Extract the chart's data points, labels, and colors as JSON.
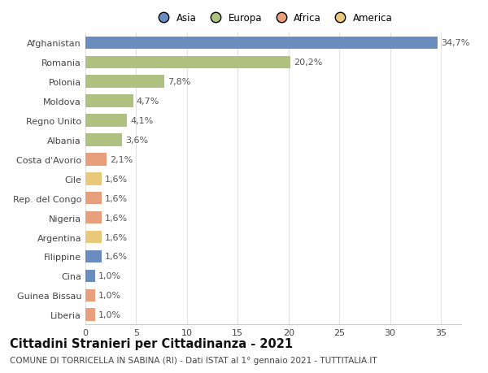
{
  "categories": [
    "Afghanistan",
    "Romania",
    "Polonia",
    "Moldova",
    "Regno Unito",
    "Albania",
    "Costa d'Avorio",
    "Cile",
    "Rep. del Congo",
    "Nigeria",
    "Argentina",
    "Filippine",
    "Cina",
    "Guinea Bissau",
    "Liberia"
  ],
  "values": [
    34.7,
    20.2,
    7.8,
    4.7,
    4.1,
    3.6,
    2.1,
    1.6,
    1.6,
    1.6,
    1.6,
    1.6,
    1.0,
    1.0,
    1.0
  ],
  "labels": [
    "34,7%",
    "20,2%",
    "7,8%",
    "4,7%",
    "4,1%",
    "3,6%",
    "2,1%",
    "1,6%",
    "1,6%",
    "1,6%",
    "1,6%",
    "1,6%",
    "1,0%",
    "1,0%",
    "1,0%"
  ],
  "colors": [
    "#6b8cbe",
    "#afc180",
    "#afc180",
    "#afc180",
    "#afc180",
    "#afc180",
    "#e8a07c",
    "#e8c97a",
    "#e8a07c",
    "#e8a07c",
    "#e8c97a",
    "#6b8cbe",
    "#6b8cbe",
    "#e8a07c",
    "#e8a07c"
  ],
  "legend_labels": [
    "Asia",
    "Europa",
    "Africa",
    "America"
  ],
  "legend_colors": [
    "#6b8cbe",
    "#afc180",
    "#e8a07c",
    "#e8c97a"
  ],
  "title": "Cittadini Stranieri per Cittadinanza - 2021",
  "subtitle": "COMUNE DI TORRICELLA IN SABINA (RI) - Dati ISTAT al 1° gennaio 2021 - TUTTITALIA.IT",
  "xlim": [
    0,
    37
  ],
  "xticks": [
    0,
    5,
    10,
    15,
    20,
    25,
    30,
    35
  ],
  "background_color": "#ffffff",
  "grid_color": "#e0e0e0",
  "bar_height": 0.65,
  "title_fontsize": 10.5,
  "subtitle_fontsize": 7.5,
  "label_fontsize": 8,
  "tick_fontsize": 8,
  "legend_fontsize": 8.5
}
